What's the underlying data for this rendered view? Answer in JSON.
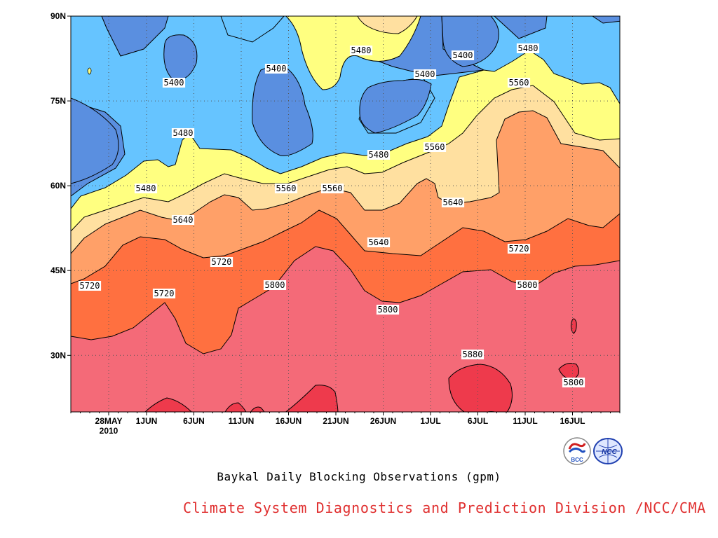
{
  "chart_data": {
    "type": "contour",
    "title": "Baykal Daily Blocking Observations (gpm)",
    "credit": "Climate System Diagnostics and Prediction Division /NCC/CMA",
    "y_axis": {
      "range": [
        20,
        90
      ],
      "ticks": [
        "90N",
        "75N",
        "60N",
        "45N",
        "30N"
      ]
    },
    "x_axis": {
      "range": [
        "2010-05-24",
        "2010-07-21"
      ],
      "ticks": [
        "28MAY",
        "1JUN",
        "6JUN",
        "11JUN",
        "16JUN",
        "21JUN",
        "26JUN",
        "1JUL",
        "6JUL",
        "11JUL",
        "16JUL"
      ],
      "year_label": "2010"
    },
    "grid": true,
    "levels": [
      5400,
      5480,
      5560,
      5640,
      5720,
      5800,
      5880
    ],
    "fill_colors": {
      "below_5400": "#5a8fe0",
      "5400_5480": "#66c4ff",
      "5480_5560": "#ffff80",
      "5560_5640": "#ffe0a0",
      "5640_5720": "#ffa068",
      "5720_5800": "#ff7040",
      "5800_5880": "#f46a78",
      "above_5880": "#ee3a4c"
    },
    "contour_labels": [
      "5400",
      "5400",
      "5480",
      "5400",
      "5400",
      "5480",
      "5480",
      "5480",
      "5560",
      "5480",
      "5560",
      "5560",
      "5640",
      "5560",
      "5640",
      "5640",
      "5720",
      "5720",
      "5720",
      "5720",
      "5800",
      "5800",
      "5800",
      "5800",
      "5880",
      "5880"
    ]
  },
  "logos": {
    "left": "BCC",
    "right": "NCC"
  }
}
